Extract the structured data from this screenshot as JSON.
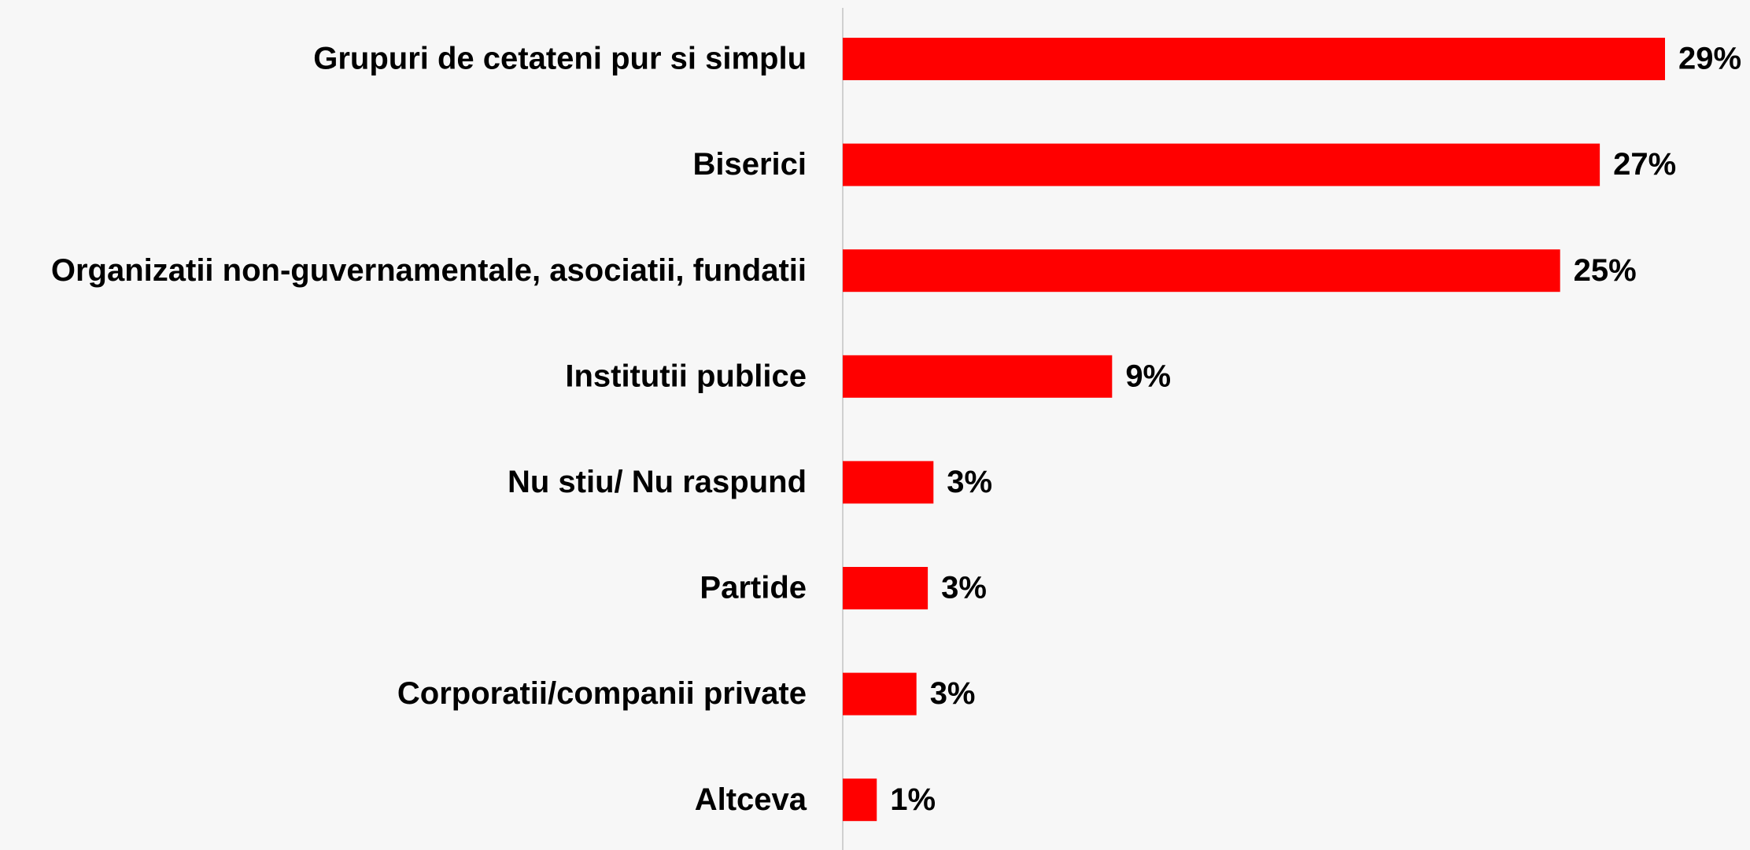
{
  "chart_data": {
    "type": "hbar",
    "categories": [
      "Grupuri de cetateni pur si simplu",
      "Biserici",
      "Organizatii non-guvernamentale, asociatii, fundatii",
      "Institutii publice",
      "Nu stiu/ Nu raspund",
      "Partide",
      "Corporatii/companii private",
      "Altceva"
    ],
    "values": [
      29,
      26.7,
      25.3,
      9.5,
      3.2,
      3.0,
      2.6,
      1.2
    ],
    "value_labels": [
      "29%",
      "27%",
      "25%",
      "9%",
      "3%",
      "3%",
      "3%",
      "1%"
    ],
    "color": "#ff0000"
  }
}
